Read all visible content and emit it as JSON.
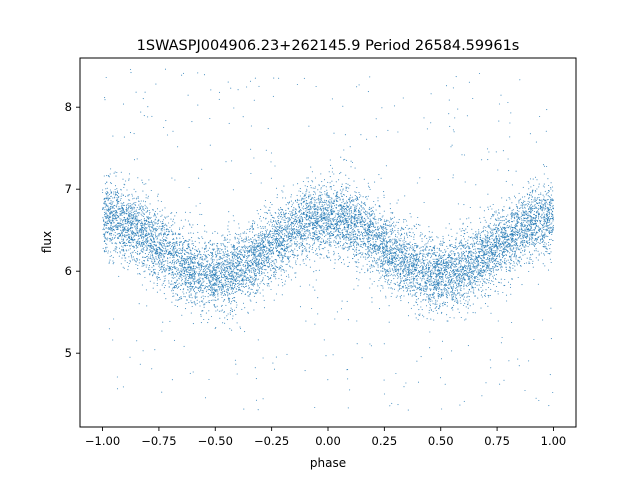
{
  "chart_data": {
    "type": "scatter",
    "title": "1SWASPJ004906.23+262145.9 Period 26584.59961s",
    "xlabel": "phase",
    "ylabel": "flux",
    "xlim": [
      -1.1,
      1.1
    ],
    "ylim": [
      4.1,
      8.6
    ],
    "xticks": [
      -1.0,
      -0.75,
      -0.5,
      -0.25,
      0.0,
      0.25,
      0.5,
      0.75,
      1.0
    ],
    "xtick_labels": [
      "−1.00",
      "−0.75",
      "−0.50",
      "−0.25",
      "0.00",
      "0.25",
      "0.50",
      "0.75",
      "1.00"
    ],
    "yticks": [
      5,
      6,
      7,
      8
    ],
    "ytick_labels": [
      "5",
      "6",
      "7",
      "8"
    ],
    "grid": false,
    "legend": "none",
    "marker_color": "#1f77b4",
    "series": [
      {
        "description_of_trend": "folded light curve",
        "phase_range": [
          -1.0,
          1.0
        ],
        "mean_flux_at_phase": {
          "-1.00": 6.6,
          "-0.75": 6.3,
          "-0.50": 5.95,
          "-0.25": 6.35,
          "0.00": 6.65,
          "0.25": 6.3,
          "0.50": 5.95,
          "0.75": 6.3,
          "1.00": 6.65
        },
        "approx_model": {
          "mean": 6.3,
          "amplitude": 0.35,
          "cycles_per_phase_unit": 1,
          "scatter": 0.22
        },
        "outlier_flux_range": [
          4.3,
          8.5
        ]
      }
    ]
  }
}
